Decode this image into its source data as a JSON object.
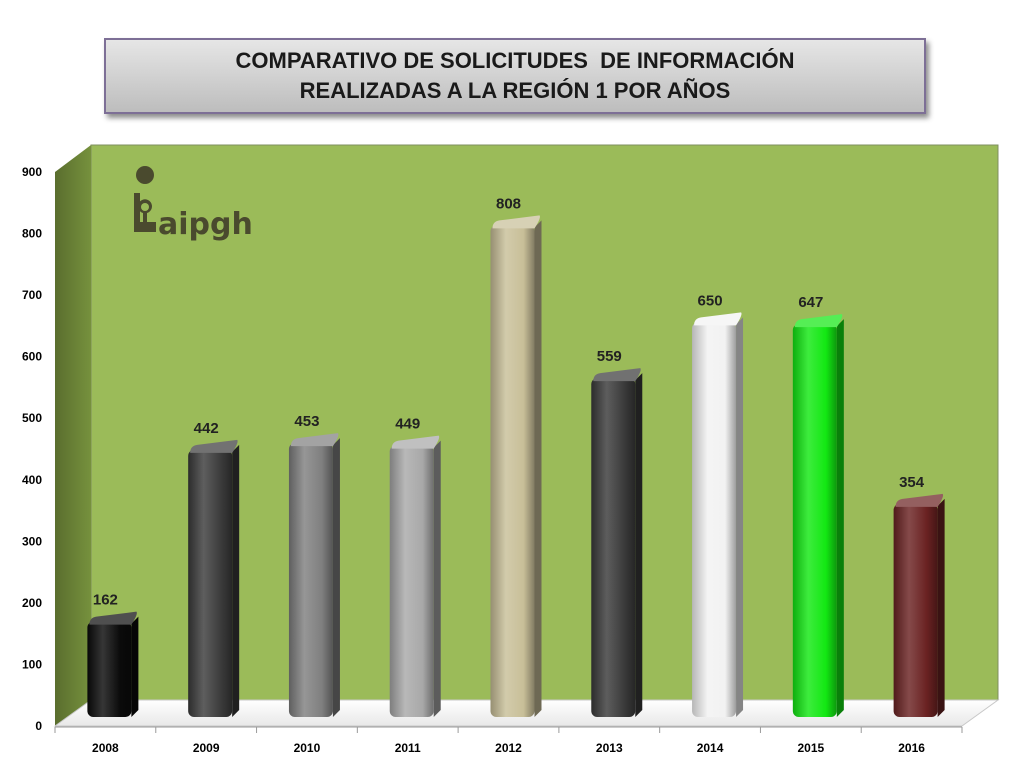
{
  "title": {
    "line1": "COMPARATIVO DE SOLICITUDES  DE INFORMACIÓN",
    "line2": "REALIZADAS A LA REGIÓN 1 POR AÑOS"
  },
  "logo": {
    "text": "aipgh",
    "icon": "info-person-icon"
  },
  "chart_data": {
    "type": "bar",
    "categories": [
      "2008",
      "2009",
      "2010",
      "2011",
      "2012",
      "2013",
      "2014",
      "2015",
      "2016"
    ],
    "values": [
      162,
      442,
      453,
      449,
      808,
      559,
      650,
      647,
      354
    ],
    "colors": [
      "#0a0a0a",
      "#3b3b3b",
      "#7f7f7f",
      "#a8a8a8",
      "#c8bf98",
      "#3a3a3a",
      "#f2f2f2",
      "#13e813",
      "#6a2222"
    ],
    "ylim": [
      0,
      900
    ],
    "yticks": [
      0,
      100,
      200,
      300,
      400,
      500,
      600,
      700,
      800,
      900
    ],
    "grid": false,
    "legend": "none",
    "background": "#9bbb59",
    "title": "",
    "xlabel": "",
    "ylabel": ""
  }
}
